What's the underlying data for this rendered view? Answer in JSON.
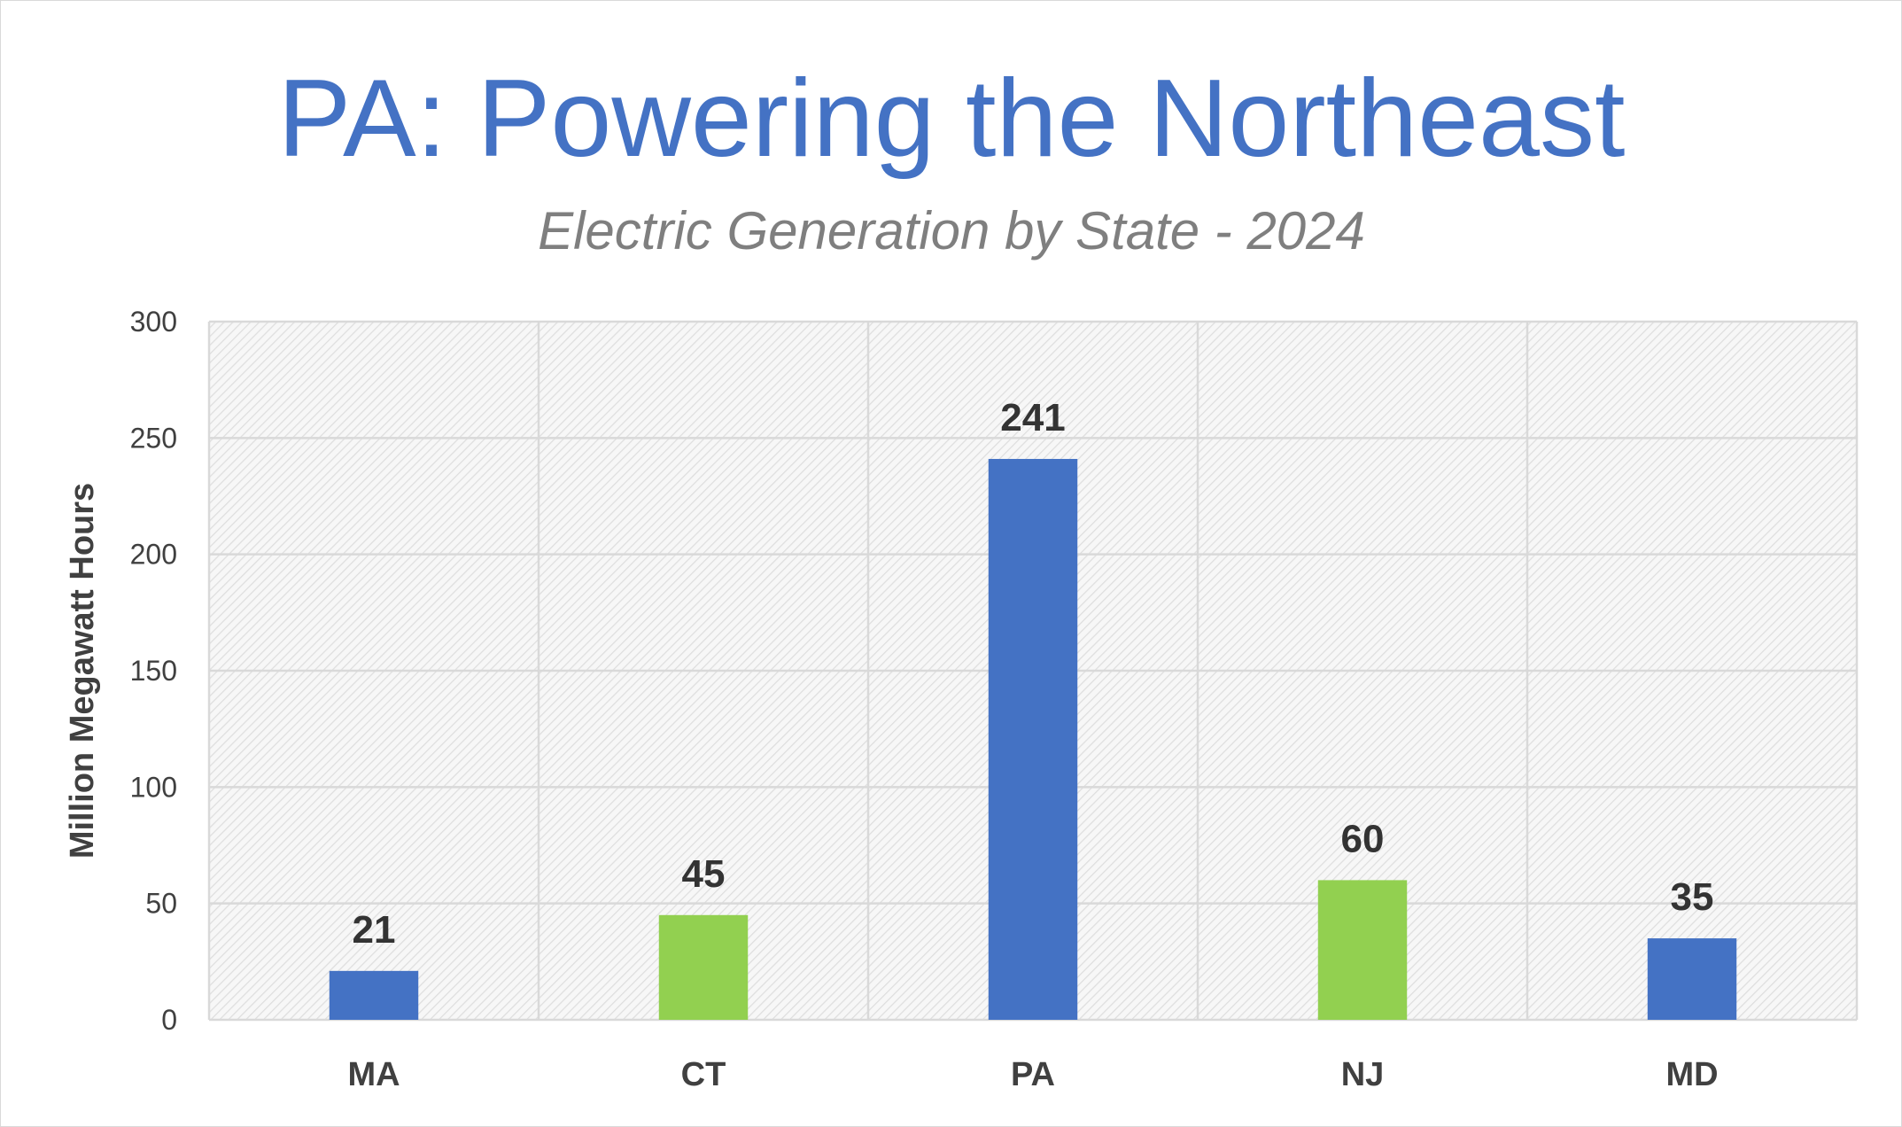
{
  "chart_data": {
    "type": "bar",
    "title": "PA: Powering the Northeast",
    "subtitle": "Electric Generation by State - 2024",
    "xlabel": "",
    "ylabel": "Million Megawatt Hours",
    "categories": [
      "MA",
      "CT",
      "PA",
      "NJ",
      "MD"
    ],
    "values": [
      21,
      45,
      241,
      60,
      35
    ],
    "bar_colors": [
      "#4472c4",
      "#92d050",
      "#4472c4",
      "#92d050",
      "#4472c4"
    ],
    "data_labels": [
      "21",
      "45",
      "241",
      "60",
      "35"
    ],
    "ylim": [
      0,
      300
    ],
    "yticks": [
      0,
      50,
      100,
      150,
      200,
      250,
      300
    ],
    "ytick_labels": [
      "0",
      "50",
      "100",
      "150",
      "200",
      "250",
      "300"
    ],
    "grid": true,
    "legend": null
  },
  "colors": {
    "title": "#4472c4",
    "subtitle": "#7f7f7f",
    "axis_text": "#404040",
    "gridline": "#d9d9d9",
    "plot_hatch": "#e3e3e3"
  }
}
